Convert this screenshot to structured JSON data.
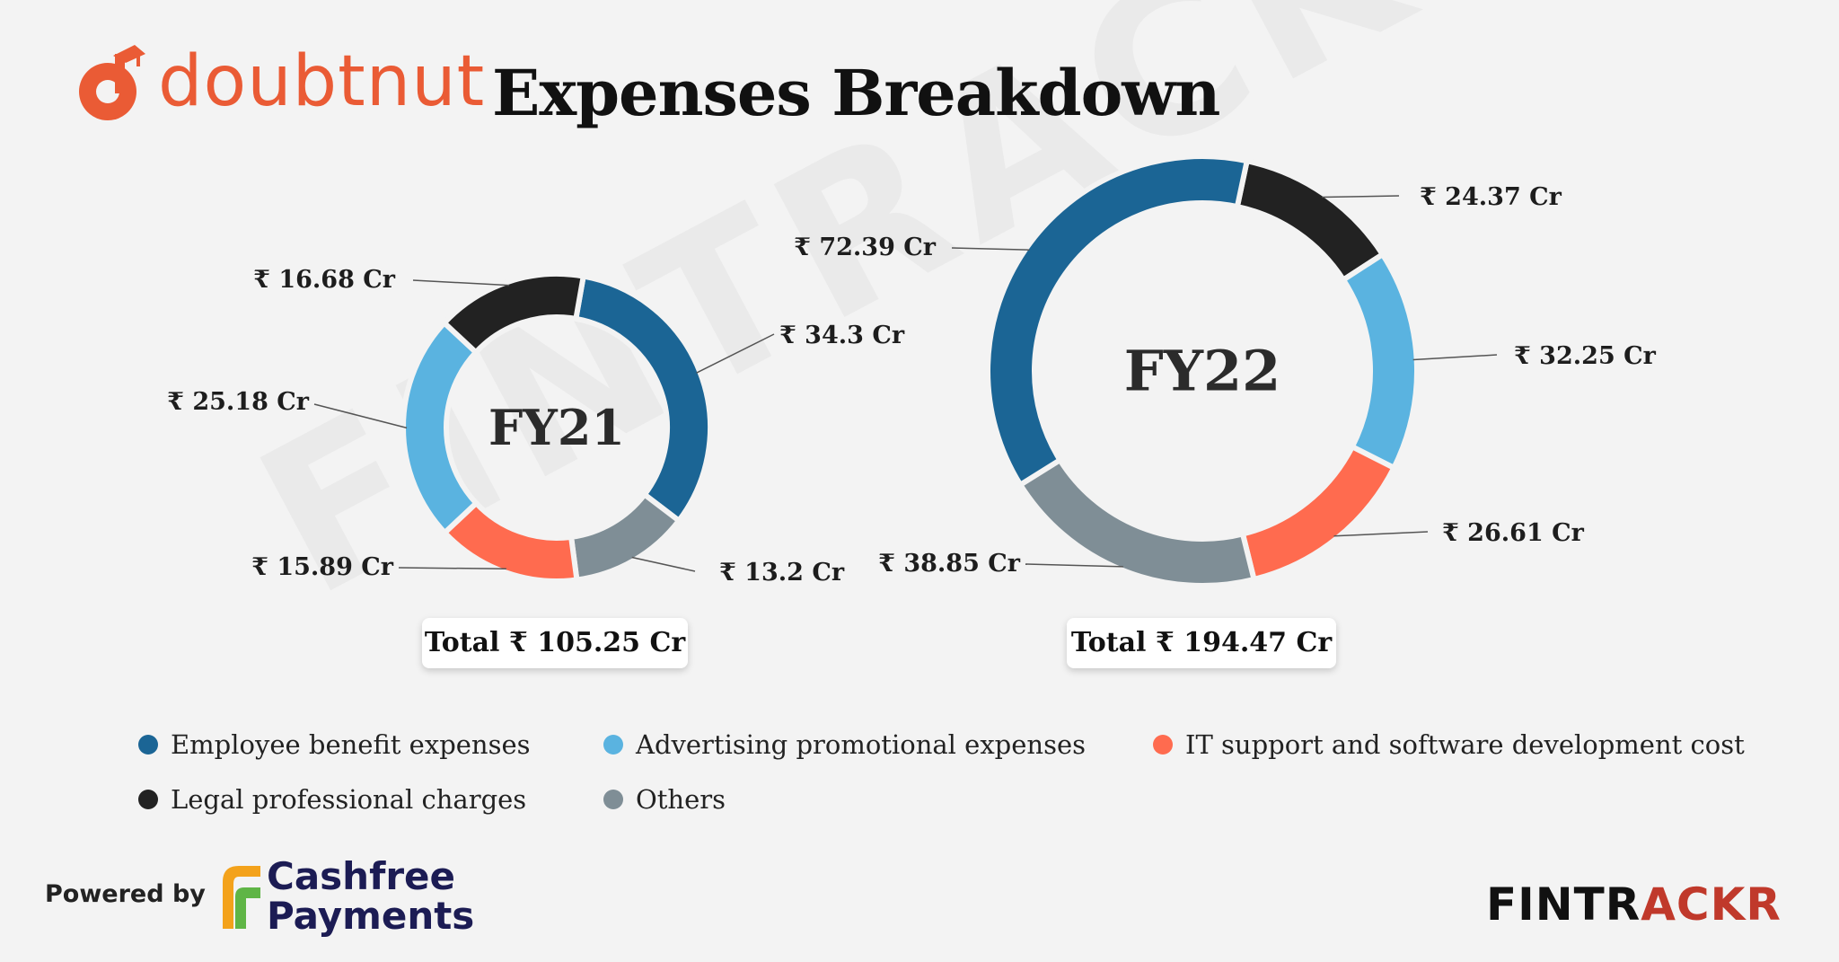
{
  "header": {
    "brand": "doubtnut",
    "title": "Expenses Breakdown"
  },
  "watermark": "FINTRACKR",
  "chart_data": [
    {
      "type": "pie",
      "center_label": "FY21",
      "total_label": "Total ₹ 105.25 Cr",
      "unit": "₹ Cr",
      "categories": [
        "Employee benefit expenses",
        "Others",
        "IT support and software development cost",
        "Advertising promotional expenses",
        "Legal professional charges"
      ],
      "values": [
        34.3,
        13.2,
        15.89,
        25.18,
        16.68
      ],
      "value_labels": [
        "₹ 34.3 Cr",
        "₹ 13.2 Cr",
        "₹ 15.89 Cr",
        "₹ 25.18 Cr",
        "₹ 16.68 Cr"
      ]
    },
    {
      "type": "pie",
      "center_label": "FY22",
      "total_label": "Total ₹ 194.47 Cr",
      "unit": "₹ Cr",
      "categories": [
        "Legal professional charges",
        "Advertising promotional expenses",
        "IT support and software development cost",
        "Others",
        "Employee benefit expenses"
      ],
      "values": [
        24.37,
        32.25,
        26.61,
        38.85,
        72.39
      ],
      "value_labels": [
        "₹ 24.37 Cr",
        "₹ 32.25 Cr",
        "₹ 26.61 Cr",
        "₹ 38.85 Cr",
        "₹ 72.39 Cr"
      ]
    }
  ],
  "legend": [
    {
      "label": "Employee benefit expenses",
      "color": "#1b6595"
    },
    {
      "label": "Advertising promotional expenses",
      "color": "#5ab3e0"
    },
    {
      "label": "IT support and software development cost",
      "color": "#ff6b4f"
    },
    {
      "label": "Legal professional charges",
      "color": "#222222"
    },
    {
      "label": "Others",
      "color": "#7f8e96"
    }
  ],
  "colors": {
    "Employee benefit expenses": "#1b6595",
    "Advertising promotional expenses": "#5ab3e0",
    "IT support and software development cost": "#ff6b4f",
    "Legal professional charges": "#222222",
    "Others": "#7f8e96"
  },
  "footer": {
    "powered_by": "Powered by",
    "sponsor_line1": "Cashfree",
    "sponsor_line2": "Payments",
    "source_part1": "FINTR",
    "source_part2": "ACKR"
  }
}
